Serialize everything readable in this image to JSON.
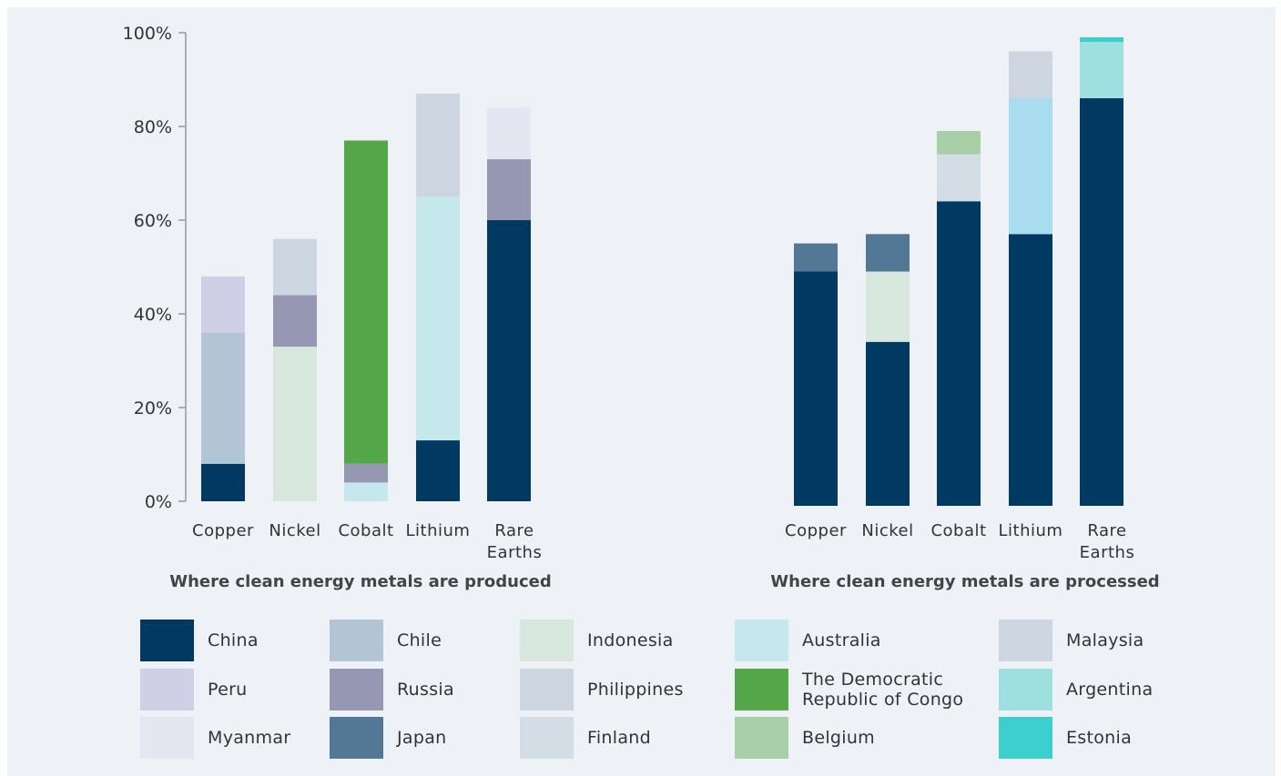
{
  "chart_data": [
    {
      "type": "bar",
      "stacked": true,
      "title": "Where clean energy metals are produced",
      "categories": [
        "Copper",
        "Nickel",
        "Cobalt",
        "Lithium",
        "Rare Earths"
      ],
      "ylim": [
        0,
        100
      ],
      "yticks": [
        "0%",
        "20%",
        "40%",
        "60%",
        "80%",
        "100%"
      ],
      "grid": false,
      "series": [
        {
          "name": "China",
          "values": [
            8,
            0,
            0,
            13,
            60
          ]
        },
        {
          "name": "Chile",
          "values": [
            28,
            0,
            0,
            0,
            0
          ]
        },
        {
          "name": "Indonesia",
          "values": [
            0,
            33,
            0,
            0,
            0
          ]
        },
        {
          "name": "Australia",
          "values": [
            0,
            0,
            4,
            52,
            0
          ]
        },
        {
          "name": "Malaysia",
          "values": [
            0,
            0,
            0,
            22,
            0
          ]
        },
        {
          "name": "Peru",
          "values": [
            12,
            0,
            0,
            0,
            0
          ]
        },
        {
          "name": "Russia",
          "values": [
            0,
            11,
            4,
            0,
            13
          ]
        },
        {
          "name": "Philippines",
          "values": [
            0,
            12,
            0,
            0,
            0
          ]
        },
        {
          "name": "The Democratic Republic of Congo",
          "values": [
            0,
            0,
            69,
            0,
            0
          ]
        },
        {
          "name": "Myanmar",
          "values": [
            0,
            0,
            0,
            0,
            11
          ]
        }
      ]
    },
    {
      "type": "bar",
      "stacked": true,
      "title": "Where clean energy metals are processed",
      "categories": [
        "Copper",
        "Nickel",
        "Cobalt",
        "Lithium",
        "Rare Earths"
      ],
      "ylim": [
        0,
        100
      ],
      "grid": false,
      "series": [
        {
          "name": "China",
          "values": [
            50,
            35,
            65,
            58,
            87
          ]
        },
        {
          "name": "Indonesia",
          "values": [
            0,
            15,
            0,
            0,
            0
          ]
        },
        {
          "name": "Japan",
          "values": [
            6,
            8,
            0,
            0,
            0
          ]
        },
        {
          "name": "Finland",
          "values": [
            0,
            0,
            10,
            0,
            0
          ]
        },
        {
          "name": "Belgium",
          "values": [
            0,
            0,
            5,
            0,
            0
          ]
        },
        {
          "name": "Australia",
          "values": [
            0,
            0,
            0,
            29,
            0
          ]
        },
        {
          "name": "Malaysia",
          "values": [
            0,
            0,
            0,
            10,
            0
          ]
        },
        {
          "name": "Argentina",
          "values": [
            0,
            0,
            0,
            0,
            12
          ]
        },
        {
          "name": "Estonia",
          "values": [
            0,
            0,
            0,
            0,
            1
          ]
        }
      ]
    }
  ],
  "legend": [
    {
      "name": "China",
      "color": "#003a63"
    },
    {
      "name": "Chile",
      "color": "#b1c5d4"
    },
    {
      "name": "Indonesia",
      "color": "#d7e7dd"
    },
    {
      "name": "Australia",
      "color": "#c4e8ec"
    },
    {
      "name": "Malaysia",
      "color": "#ccd5e0"
    },
    {
      "name": "Peru",
      "color": "#cfd0e6"
    },
    {
      "name": "Russia",
      "color": "#9698b3"
    },
    {
      "name": "Philippines",
      "color": "#cbd6e1"
    },
    {
      "name": "The Democratic Republic of Congo",
      "color": "#55a84a"
    },
    {
      "name": "Argentina",
      "color": "#9ee0e0"
    },
    {
      "name": "Myanmar",
      "color": "#e4e7f1"
    },
    {
      "name": "Japan",
      "color": "#527896"
    },
    {
      "name": "Finland",
      "color": "#d3dde6"
    },
    {
      "name": "Belgium",
      "color": "#a8cfa7"
    },
    {
      "name": "Estonia",
      "color": "#3ccfcd"
    }
  ],
  "colors": {
    "Australia_processed": "#aadcef",
    "panel_background": "#eef2f7",
    "axis": "#999999"
  }
}
